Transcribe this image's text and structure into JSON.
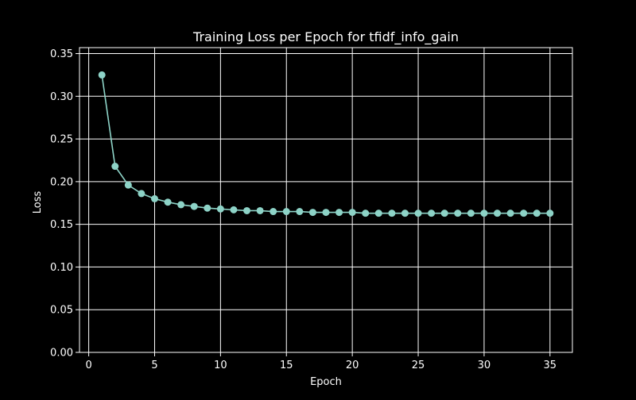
{
  "chart_data": {
    "type": "line",
    "title": "Training Loss per Epoch for tfidf_info_gain",
    "xlabel": "Epoch",
    "ylabel": "Loss",
    "xlim": [
      -0.7,
      36.7
    ],
    "ylim": [
      0,
      0.357
    ],
    "xticks": [
      0,
      5,
      10,
      15,
      20,
      25,
      30,
      35
    ],
    "yticks": [
      0.0,
      0.05,
      0.1,
      0.15,
      0.2,
      0.25,
      0.3,
      0.35
    ],
    "grid": true,
    "x": [
      1,
      2,
      3,
      4,
      5,
      6,
      7,
      8,
      9,
      10,
      11,
      12,
      13,
      14,
      15,
      16,
      17,
      18,
      19,
      20,
      21,
      22,
      23,
      24,
      25,
      26,
      27,
      28,
      29,
      30,
      31,
      32,
      33,
      34,
      35
    ],
    "series": [
      {
        "values": [
          0.325,
          0.218,
          0.196,
          0.186,
          0.18,
          0.176,
          0.173,
          0.171,
          0.169,
          0.168,
          0.167,
          0.166,
          0.166,
          0.165,
          0.165,
          0.165,
          0.164,
          0.164,
          0.164,
          0.164,
          0.163,
          0.163,
          0.163,
          0.163,
          0.163,
          0.163,
          0.163,
          0.163,
          0.163,
          0.163,
          0.163,
          0.163,
          0.163,
          0.163,
          0.163
        ],
        "color": "#8dd3c7"
      }
    ],
    "colors": {
      "background": "#000000",
      "axes": "#ffffff",
      "grid": "#ffffff"
    }
  }
}
